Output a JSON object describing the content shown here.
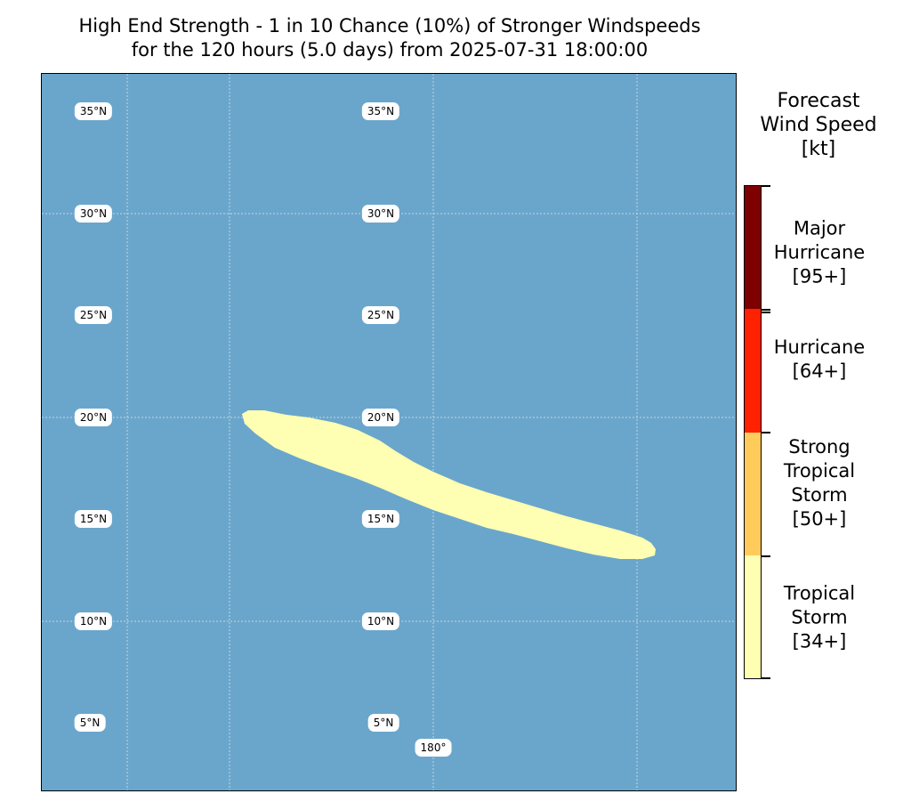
{
  "title": {
    "line1": "High End Strength - 1 in 10 Chance (10%) of Stronger Windspeeds",
    "line2": "for the 120 hours (5.0 days) from 2025-07-31 18:00:00"
  },
  "map": {
    "ocean_color": "#6aa6cc",
    "gridline_color": "#c8d4dc",
    "swath_color": "#ffffb3",
    "lat_labels": [
      "35°N",
      "30°N",
      "25°N",
      "20°N",
      "15°N",
      "10°N",
      "5°N"
    ],
    "lon_label": "180°"
  },
  "legend": {
    "title_line1": "Forecast",
    "title_line2": "Wind Speed",
    "title_line3": "[kt]",
    "categories": [
      {
        "lines": [
          "Major",
          "Hurricane",
          "[95+]"
        ],
        "color": "#7f0000"
      },
      {
        "lines": [
          "Hurricane",
          "[64+]"
        ],
        "color": "#ff2200"
      },
      {
        "lines": [
          "Strong",
          "Tropical",
          "Storm",
          "[50+]"
        ],
        "color": "#ffcc5c"
      },
      {
        "lines": [
          "Tropical",
          "Storm",
          "[34+]"
        ],
        "color": "#ffffb3"
      }
    ]
  }
}
